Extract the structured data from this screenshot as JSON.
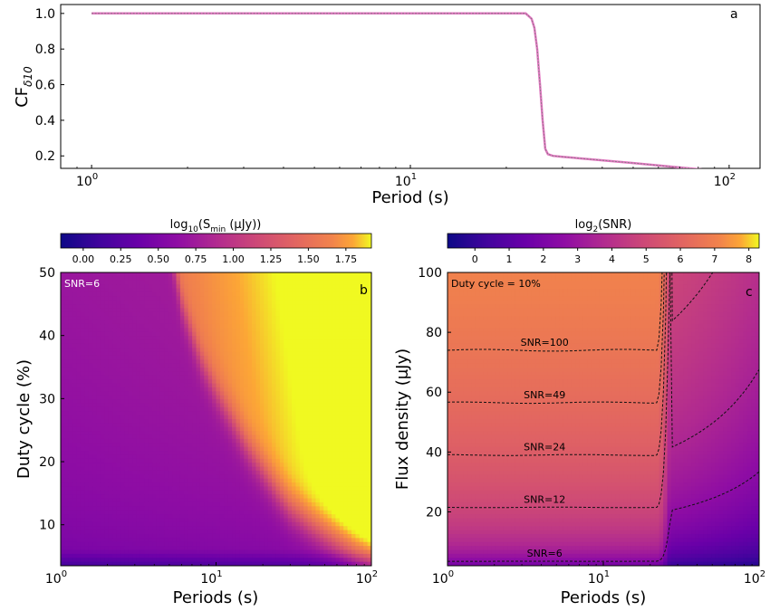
{
  "chart_data": [
    {
      "type": "line",
      "panel_label": "a",
      "xlabel": "Period (s)",
      "ylabel_main": "CF",
      "ylabel_sub": "δ10",
      "xscale": "log",
      "xlim": [
        0.8,
        125
      ],
      "ylim": [
        0.13,
        1.05
      ],
      "xticks": [
        {
          "v": 1,
          "base": "10",
          "exp": "0"
        },
        {
          "v": 10,
          "base": "10",
          "exp": "1"
        },
        {
          "v": 100,
          "base": "10",
          "exp": "2"
        }
      ],
      "yticks": [
        {
          "v": 0.2,
          "label": "0.2"
        },
        {
          "v": 0.4,
          "label": "0.4"
        },
        {
          "v": 0.6,
          "label": "0.6"
        },
        {
          "v": 0.8,
          "label": "0.8"
        },
        {
          "v": 1.0,
          "label": "1.0"
        }
      ],
      "series": [
        {
          "color": "#e377c2",
          "x": [
            1,
            5,
            10,
            15,
            20,
            23,
            24,
            24.5,
            25,
            25.5,
            26,
            26.5,
            27,
            28,
            30,
            40,
            50,
            70,
            100
          ],
          "y": [
            1.0,
            1.0,
            1.0,
            1.0,
            1.0,
            1.0,
            0.97,
            0.92,
            0.8,
            0.6,
            0.4,
            0.24,
            0.21,
            0.2,
            0.195,
            0.175,
            0.16,
            0.135,
            0.11
          ]
        }
      ]
    },
    {
      "type": "heatmap",
      "panel_label": "b",
      "annotation": "SNR=6",
      "xlabel": "Periods (s)",
      "ylabel": "Duty cycle (%)",
      "xscale": "log",
      "xlim": [
        1,
        100
      ],
      "ylim": [
        3.5,
        50
      ],
      "colorbar": {
        "label_prefix": "log",
        "label_sub": "10",
        "label_main": "(S",
        "label_sub2": "min",
        "label_unit": " (μJy))",
        "range": [
          -0.15,
          1.92
        ],
        "ticks": [
          "0.00",
          "0.25",
          "0.50",
          "0.75",
          "1.00",
          "1.25",
          "1.50",
          "1.75"
        ],
        "tick_values": [
          0,
          0.25,
          0.5,
          0.75,
          1.0,
          1.25,
          1.5,
          1.75
        ]
      },
      "xticks": [
        {
          "v": 1,
          "base": "10",
          "exp": "0"
        },
        {
          "v": 10,
          "base": "10",
          "exp": "1"
        },
        {
          "v": 100,
          "base": "10",
          "exp": "2"
        }
      ],
      "yticks": [
        {
          "v": 10,
          "label": "10"
        },
        {
          "v": 20,
          "label": "20"
        },
        {
          "v": 30,
          "label": "30"
        },
        {
          "v": 40,
          "label": "40"
        },
        {
          "v": 50,
          "label": "50"
        }
      ],
      "boundary": {
        "period": [
          5.5,
          6,
          7,
          8,
          10,
          13,
          16,
          20,
          25,
          30,
          40,
          50,
          65,
          80,
          100
        ],
        "duty": [
          50,
          45,
          40,
          36,
          31,
          26,
          22,
          18.5,
          15,
          12.5,
          10,
          8.3,
          6.5,
          5.2,
          4.2
        ]
      }
    },
    {
      "type": "heatmap",
      "panel_label": "c",
      "annotation": "Duty cycle = 10%",
      "xlabel": "Periods (s)",
      "ylabel": "Flux density (μJy)",
      "xscale": "log",
      "xlim": [
        1,
        100
      ],
      "ylim": [
        2,
        100
      ],
      "colorbar": {
        "label_prefix": "log",
        "label_sub": "2",
        "label_main": "(SNR)",
        "range": [
          -0.8,
          8.3
        ],
        "ticks": [
          "0",
          "1",
          "2",
          "3",
          "4",
          "5",
          "6",
          "7",
          "8"
        ],
        "tick_values": [
          0,
          1,
          2,
          3,
          4,
          5,
          6,
          7,
          8
        ]
      },
      "xticks": [
        {
          "v": 1,
          "base": "10",
          "exp": "0"
        },
        {
          "v": 10,
          "base": "10",
          "exp": "1"
        },
        {
          "v": 100,
          "base": "10",
          "exp": "2"
        }
      ],
      "yticks": [
        {
          "v": 20,
          "label": "20"
        },
        {
          "v": 40,
          "label": "40"
        },
        {
          "v": 60,
          "label": "60"
        },
        {
          "v": 80,
          "label": "80"
        },
        {
          "v": 100,
          "label": "100"
        }
      ],
      "contours": [
        {
          "label": "SNR=100",
          "snr": 100,
          "flux_short": 74,
          "flux_long": 73,
          "label_period": 4.2
        },
        {
          "label": "SNR=49",
          "snr": 49,
          "flux_short": 56.5,
          "flux_long": 35.5,
          "label_period": 4.2
        },
        {
          "label": "SNR=24",
          "snr": 24,
          "flux_short": 39,
          "flux_long": 17.5,
          "label_period": 4.2
        },
        {
          "label": "SNR=12",
          "snr": 12,
          "flux_short": 21.5,
          "flux_long": 8.7,
          "label_period": 4.2
        },
        {
          "label": "SNR=6",
          "snr": 6,
          "flux_short": 3.5,
          "flux_long": 4.3,
          "label_period": 4.2
        }
      ],
      "transition_period": 26
    }
  ]
}
